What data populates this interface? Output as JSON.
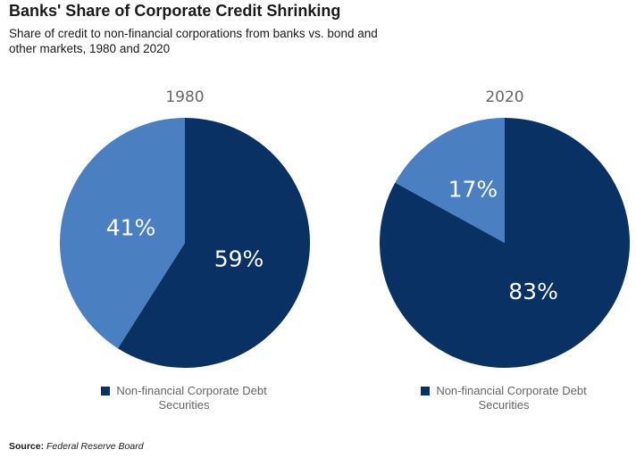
{
  "header": {
    "title": "Banks' Share of Corporate Credit Shrinking",
    "subtitle": "Share of credit to non-financial corporations from banks vs. bond and other markets, 1980 and 2020"
  },
  "colors": {
    "dark_navy": "#0a3163",
    "medium_blue": "#4a80c2"
  },
  "chart_data": [
    {
      "type": "pie",
      "title": "1980",
      "slices": [
        {
          "label": "59%",
          "value": 59,
          "color": "#0a3163",
          "legend": "Non-financial Corporate Debt Securities"
        },
        {
          "label": "41%",
          "value": 41,
          "color": "#4a80c2"
        }
      ],
      "legend": {
        "label": "Non-financial Corporate Debt Securities",
        "position": "bottom"
      }
    },
    {
      "type": "pie",
      "title": "2020",
      "slices": [
        {
          "label": "83%",
          "value": 83,
          "color": "#0a3163",
          "legend": "Non-financial Corporate Debt Securities"
        },
        {
          "label": "17%",
          "value": 17,
          "color": "#4a80c2"
        }
      ],
      "legend": {
        "label": "Non-financial Corporate Debt Securities",
        "position": "bottom"
      }
    }
  ],
  "footer": {
    "source_label": "Source:",
    "source_value": "Federal Reserve Board"
  }
}
